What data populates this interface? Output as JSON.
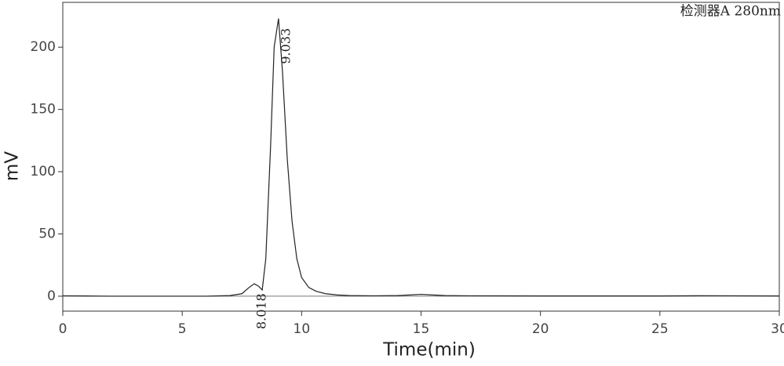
{
  "chart_data": {
    "type": "line",
    "xlabel": "Time(min)",
    "ylabel": "mV",
    "annotation": "检测器A 280nm",
    "xlim": [
      0,
      30
    ],
    "ylim": [
      -12,
      236
    ],
    "xticks": [
      0,
      5,
      10,
      15,
      20,
      25,
      30
    ],
    "yticks": [
      0,
      50,
      100,
      150,
      200
    ],
    "series": [
      {
        "color": "#222222",
        "x": [
          0,
          1,
          2,
          3,
          4,
          5,
          6,
          7,
          7.5,
          7.8,
          8.018,
          8.2,
          8.35,
          8.5,
          8.7,
          8.85,
          9.033,
          9.2,
          9.4,
          9.6,
          9.8,
          10,
          10.3,
          10.6,
          11,
          11.5,
          12,
          13,
          14,
          14.5,
          15,
          15.5,
          16,
          17,
          20,
          25,
          27,
          28,
          30
        ],
        "values": [
          0.3,
          0.2,
          0,
          0,
          0,
          0,
          0,
          0.5,
          2,
          7,
          10,
          8,
          5,
          30,
          120,
          200,
          223,
          180,
          110,
          60,
          30,
          15,
          7,
          4,
          2,
          1,
          0.5,
          0.3,
          0.5,
          1,
          1.5,
          1,
          0.5,
          0.3,
          0.2,
          0.2,
          0.4,
          0.3,
          0.2
        ]
      }
    ],
    "peaks": {
      "x": [
        8.018,
        9.033
      ],
      "values": [
        10,
        223
      ]
    }
  }
}
